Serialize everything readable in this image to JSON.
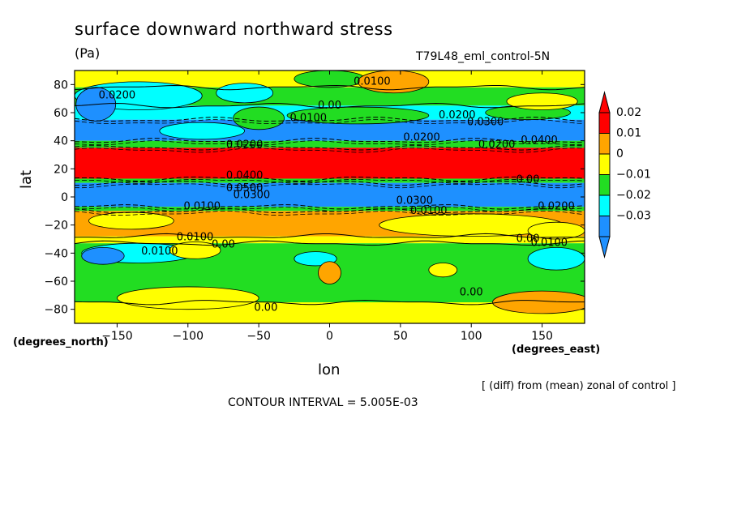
{
  "title": "surface downward northward stress",
  "units": "(Pa)",
  "experiment": "T79L48_eml_control-5N",
  "x_unit_label": "(degrees_east)",
  "y_unit_label": "(degrees_north)",
  "xlabel": "lon",
  "ylabel": "lat",
  "note": "[ (diff) from (mean) zonal of control ]",
  "contour_interval": "CONTOUR INTERVAL = 5.005E-03",
  "colors": {
    "red": "#ff0000",
    "orange": "#ffa500",
    "yellow": "#ffff00",
    "green": "#22dd22",
    "cyan": "#00ffff",
    "blue": "#1e90ff"
  },
  "chart_data": {
    "type": "heatmap",
    "xlim": [
      -180,
      180
    ],
    "ylim": [
      -90,
      90
    ],
    "x_ticks": [
      -150,
      -100,
      -50,
      0,
      50,
      100,
      150
    ],
    "x_tick_labels": [
      "−150",
      "−100",
      "−50",
      "0",
      "50",
      "100",
      "150"
    ],
    "y_ticks": [
      80,
      60,
      40,
      20,
      0,
      -20,
      -40,
      -60,
      -80
    ],
    "y_tick_labels": [
      "80",
      "60",
      "40",
      "20",
      "0",
      "−20",
      "−40",
      "−60",
      "−80"
    ],
    "colorbar": {
      "levels": [
        "0.02",
        "0.01",
        "0",
        "−0.01",
        "−0.02",
        "−0.03"
      ],
      "colors": [
        "#ff0000",
        "#ffa500",
        "#ffff00",
        "#22dd22",
        "#00ffff",
        "#1e90ff"
      ]
    },
    "zonal_bands": [
      {
        "lat_min": 78,
        "lat_max": 90,
        "color": "#ffff00"
      },
      {
        "lat_min": 65,
        "lat_max": 78,
        "color": "#22dd22"
      },
      {
        "lat_min": 55,
        "lat_max": 65,
        "color": "#00ffff"
      },
      {
        "lat_min": 40,
        "lat_max": 55,
        "color": "#1e90ff"
      },
      {
        "lat_min": 35,
        "lat_max": 40,
        "color": "#22dd22"
      },
      {
        "lat_min": 13,
        "lat_max": 35,
        "color": "#ff0000"
      },
      {
        "lat_min": 10,
        "lat_max": 13,
        "color": "#22dd22"
      },
      {
        "lat_min": -7,
        "lat_max": 10,
        "color": "#1e90ff"
      },
      {
        "lat_min": -10,
        "lat_max": -7,
        "color": "#22dd22"
      },
      {
        "lat_min": -28,
        "lat_max": -10,
        "color": "#ffa500"
      },
      {
        "lat_min": -33,
        "lat_max": -28,
        "color": "#ffff00"
      },
      {
        "lat_min": -75,
        "lat_max": -33,
        "color": "#22dd22"
      },
      {
        "lat_min": -90,
        "lat_max": -75,
        "color": "#ffff00"
      }
    ],
    "patches": [
      {
        "lon": -135,
        "lat": 72,
        "rlon": 45,
        "rlat": 10,
        "color": "#00ffff"
      },
      {
        "lon": -165,
        "lat": 66,
        "rlon": 14,
        "rlat": 12,
        "color": "#1e90ff"
      },
      {
        "lon": -60,
        "lat": 74,
        "rlon": 20,
        "rlat": 7,
        "color": "#00ffff"
      },
      {
        "lon": 0,
        "lat": 84,
        "rlon": 25,
        "rlat": 6,
        "color": "#22dd22"
      },
      {
        "lon": 45,
        "lat": 82,
        "rlon": 25,
        "rlat": 8,
        "color": "#ffa500"
      },
      {
        "lon": -90,
        "lat": 47,
        "rlon": 30,
        "rlat": 6,
        "color": "#00ffff"
      },
      {
        "lon": -50,
        "lat": 56,
        "rlon": 18,
        "rlat": 8,
        "color": "#22dd22"
      },
      {
        "lon": 20,
        "lat": 58,
        "rlon": 50,
        "rlat": 6,
        "color": "#22dd22"
      },
      {
        "lon": 140,
        "lat": 60,
        "rlon": 30,
        "rlat": 5,
        "color": "#22dd22"
      },
      {
        "lon": 150,
        "lat": 68,
        "rlon": 25,
        "rlat": 6,
        "color": "#ffff00"
      },
      {
        "lon": -140,
        "lat": -17,
        "rlon": 30,
        "rlat": 6,
        "color": "#ffff00"
      },
      {
        "lon": 100,
        "lat": -20,
        "rlon": 65,
        "rlat": 8,
        "color": "#ffff00"
      },
      {
        "lon": 160,
        "lat": -24,
        "rlon": 20,
        "rlat": 6,
        "color": "#ffff00"
      },
      {
        "lon": -135,
        "lat": -40,
        "rlon": 40,
        "rlat": 7,
        "color": "#00ffff"
      },
      {
        "lon": -160,
        "lat": -42,
        "rlon": 15,
        "rlat": 6,
        "color": "#1e90ff"
      },
      {
        "lon": -95,
        "lat": -38,
        "rlon": 18,
        "rlat": 6,
        "color": "#ffff00"
      },
      {
        "lon": -10,
        "lat": -44,
        "rlon": 15,
        "rlat": 5,
        "color": "#00ffff"
      },
      {
        "lon": 160,
        "lat": -44,
        "rlon": 20,
        "rlat": 8,
        "color": "#00ffff"
      },
      {
        "lon": -100,
        "lat": -72,
        "rlon": 50,
        "rlat": 8,
        "color": "#ffff00"
      },
      {
        "lon": 0,
        "lat": -54,
        "rlon": 8,
        "rlat": 8,
        "color": "#ffa500"
      },
      {
        "lon": 80,
        "lat": -52,
        "rlon": 10,
        "rlat": 5,
        "color": "#ffff00"
      },
      {
        "lon": 150,
        "lat": -75,
        "rlon": 35,
        "rlat": 8,
        "color": "#ffa500"
      }
    ],
    "contour_labels": [
      {
        "lon": -150,
        "lat": 70,
        "text": "0.0200"
      },
      {
        "lon": 30,
        "lat": 80,
        "text": "0.0100"
      },
      {
        "lon": 0,
        "lat": 63,
        "text": "0.00"
      },
      {
        "lon": -15,
        "lat": 54,
        "text": "0.0100"
      },
      {
        "lon": 90,
        "lat": 56,
        "text": "0.0200"
      },
      {
        "lon": 110,
        "lat": 51,
        "text": "0.0300"
      },
      {
        "lon": 65,
        "lat": 40,
        "text": "0.0200"
      },
      {
        "lon": 118,
        "lat": 35,
        "text": "0.0200"
      },
      {
        "lon": -60,
        "lat": 35,
        "text": "0.0200"
      },
      {
        "lon": 148,
        "lat": 38,
        "text": "0.0400"
      },
      {
        "lon": -60,
        "lat": 13,
        "text": "0.0400"
      },
      {
        "lon": -60,
        "lat": 4,
        "text": "0.0500"
      },
      {
        "lon": -55,
        "lat": -1,
        "text": "0.0300"
      },
      {
        "lon": 140,
        "lat": 10,
        "text": "0.00"
      },
      {
        "lon": 60,
        "lat": -5,
        "text": "0.0300"
      },
      {
        "lon": 70,
        "lat": -12,
        "text": "0.0100"
      },
      {
        "lon": -90,
        "lat": -9,
        "text": "0.0100"
      },
      {
        "lon": 160,
        "lat": -9,
        "text": "0.0200"
      },
      {
        "lon": -95,
        "lat": -31,
        "text": "0.0100"
      },
      {
        "lon": -75,
        "lat": -36,
        "text": "0.00"
      },
      {
        "lon": -120,
        "lat": -41,
        "text": "0.0100"
      },
      {
        "lon": 140,
        "lat": -32,
        "text": "0.00"
      },
      {
        "lon": 155,
        "lat": -35,
        "text": "0.0100"
      },
      {
        "lon": 100,
        "lat": -70,
        "text": "0.00"
      },
      {
        "lon": -45,
        "lat": -81,
        "text": "0.00"
      }
    ]
  }
}
